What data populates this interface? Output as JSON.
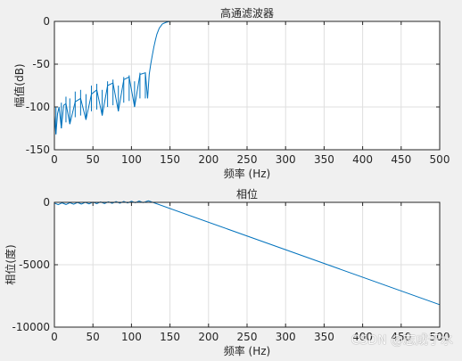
{
  "chart_data": [
    {
      "type": "line",
      "title": "高通滤波器",
      "xlabel": "频率 (Hz)",
      "ylabel": "幅值(dB)",
      "xlim": [
        0,
        500
      ],
      "ylim": [
        -150,
        0
      ],
      "xticks": [
        0,
        50,
        100,
        150,
        200,
        250,
        300,
        350,
        400,
        450,
        500
      ],
      "yticks": [
        -150,
        -100,
        -50,
        0
      ],
      "grid": true,
      "series": [
        {
          "color": "#0072bd",
          "x": [
            0,
            2,
            4,
            6,
            9,
            12,
            15,
            20,
            27,
            34,
            41,
            48,
            55,
            62,
            69,
            76,
            83,
            90,
            97,
            104,
            111,
            118,
            121,
            123,
            125,
            127,
            129,
            131,
            133,
            136,
            140,
            145,
            150,
            500
          ],
          "y": [
            -110,
            -132,
            -108,
            -100,
            -125,
            -98,
            -96,
            -120,
            -94,
            -90,
            -115,
            -85,
            -80,
            -110,
            -75,
            -72,
            -105,
            -68,
            -65,
            -100,
            -62,
            -60,
            -90,
            -62,
            -50,
            -40,
            -30,
            -22,
            -15,
            -8,
            -3,
            -1,
            0,
            0
          ],
          "nulls_x": [
            2,
            9,
            15,
            20,
            27,
            34,
            41,
            48,
            55,
            62,
            69,
            76,
            83,
            90,
            97,
            104,
            111,
            118
          ],
          "nulls_y": [
            -132,
            -125,
            -118,
            -120,
            -112,
            -110,
            -115,
            -105,
            -103,
            -110,
            -100,
            -98,
            -105,
            -95,
            -93,
            -100,
            -90,
            -90
          ]
        }
      ]
    },
    {
      "type": "line",
      "title": "相位",
      "xlabel": "频率 (Hz)",
      "ylabel": "相位(度)",
      "xlim": [
        0,
        500
      ],
      "ylim": [
        -10000,
        0
      ],
      "xticks": [
        0,
        50,
        100,
        150,
        200,
        250,
        300,
        350,
        400,
        450,
        500
      ],
      "yticks": [
        -10000,
        -5000,
        0
      ],
      "grid": true,
      "series": [
        {
          "color": "#0072bd",
          "x": [
            0,
            122,
            500
          ],
          "y": [
            -60,
            120,
            -8200
          ],
          "ripple_x": [
            0,
            10,
            20,
            30,
            40,
            50,
            60,
            70,
            80,
            90,
            100,
            110,
            120
          ],
          "ripple_amp": 130
        }
      ]
    }
  ],
  "watermark": "CSDN @志成于水"
}
